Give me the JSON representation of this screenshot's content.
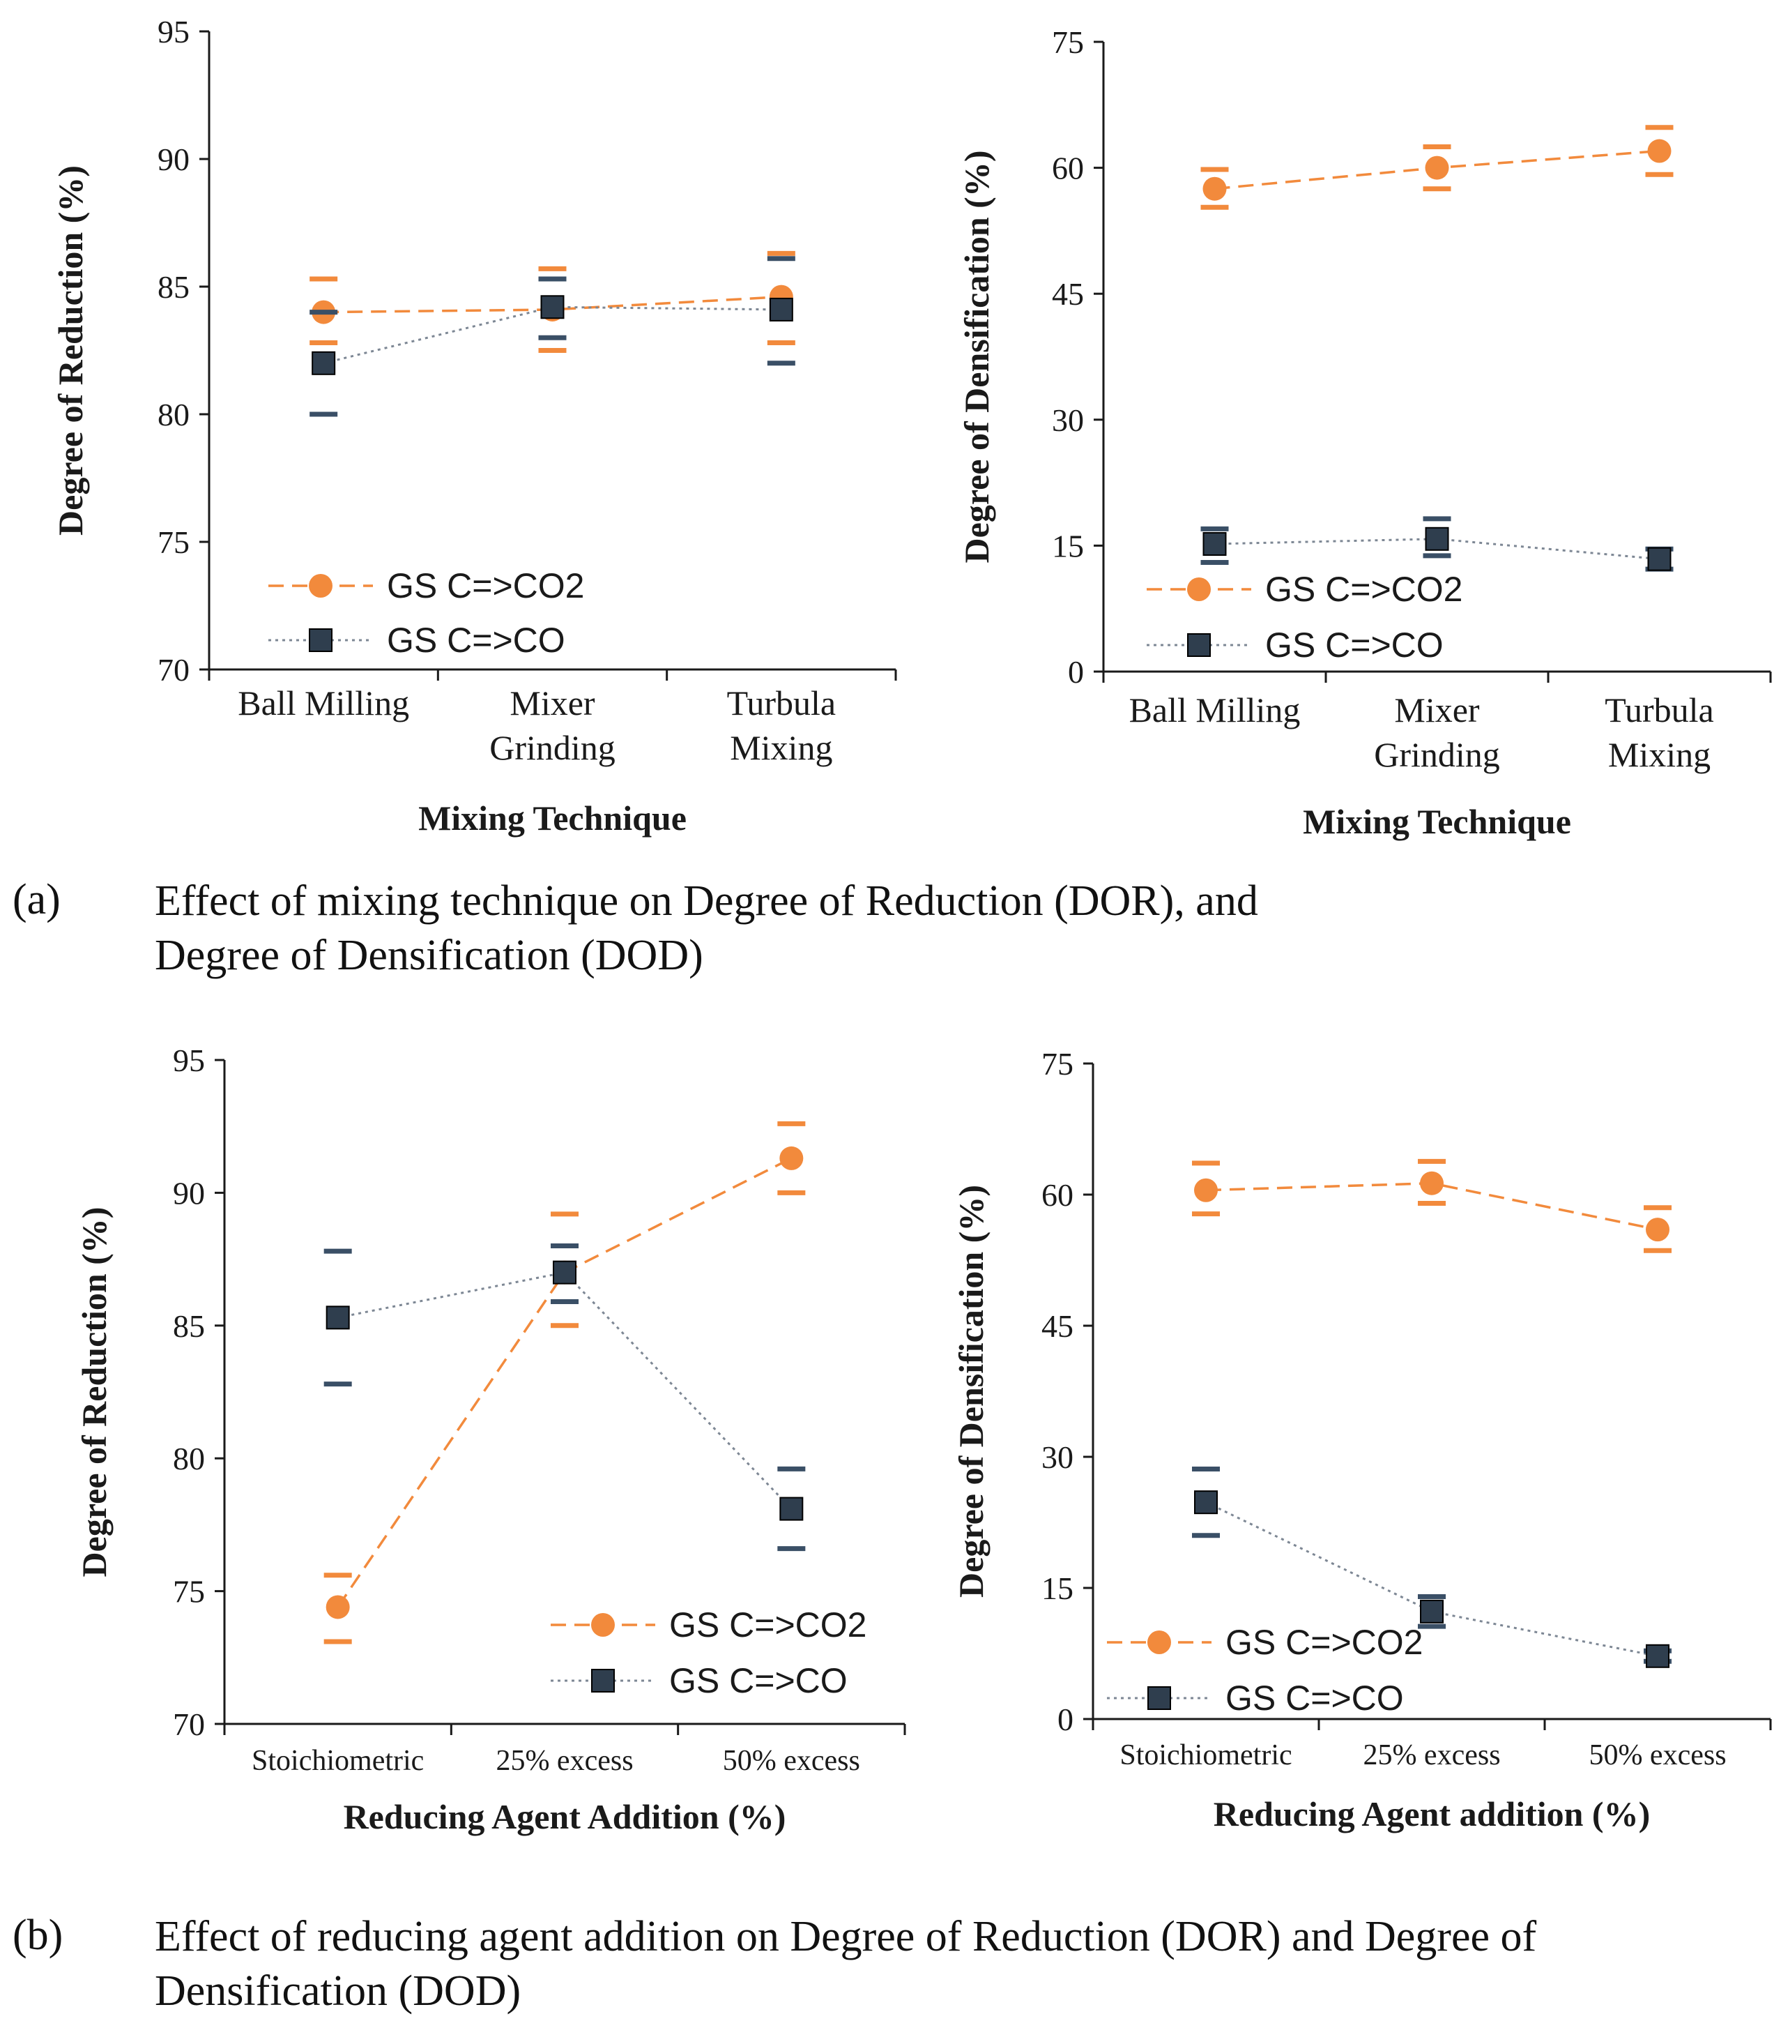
{
  "colors": {
    "co2": "#F28A3C",
    "co": "#2F3E4E",
    "co_err": "#3A4F66",
    "axis": "#1a1a1a"
  },
  "legend": {
    "co2": "GS C=>CO2",
    "co": "GS C=>CO"
  },
  "chart_data": [
    {
      "id": "a-dor",
      "type": "line",
      "title": "",
      "xlabel": "Mixing Technique",
      "ylabel": "Degree of Reduction (%)",
      "categories": [
        [
          "Ball Milling"
        ],
        [
          "Mixer",
          "Grinding"
        ],
        [
          "Turbula",
          "Mixing"
        ]
      ],
      "ylim": [
        70,
        95
      ],
      "yticks": [
        70,
        75,
        80,
        85,
        90,
        95
      ],
      "legend_position": "bottom-left",
      "series": [
        {
          "name": "GS C=>CO2",
          "key": "co2",
          "values": [
            84.0,
            84.1,
            84.6
          ],
          "err_low": [
            82.8,
            82.5,
            82.8
          ],
          "err_high": [
            85.3,
            85.7,
            86.3
          ]
        },
        {
          "name": "GS C=>CO",
          "key": "co",
          "values": [
            82.0,
            84.2,
            84.1
          ],
          "err_low": [
            80.0,
            83.0,
            82.0
          ],
          "err_high": [
            84.0,
            85.3,
            86.1
          ]
        }
      ]
    },
    {
      "id": "a-dod",
      "type": "line",
      "title": "",
      "xlabel": "Mixing Technique",
      "ylabel": "Degree of Densification (%)",
      "categories": [
        [
          "Ball Milling"
        ],
        [
          "Mixer",
          "Grinding"
        ],
        [
          "Turbula",
          "Mixing"
        ]
      ],
      "ylim": [
        0,
        75
      ],
      "yticks": [
        0,
        15,
        30,
        45,
        60,
        75
      ],
      "legend_position": "bottom-left",
      "series": [
        {
          "name": "GS C=>CO2",
          "key": "co2",
          "values": [
            57.5,
            60.0,
            62.0
          ],
          "err_low": [
            55.3,
            57.5,
            59.2
          ],
          "err_high": [
            59.8,
            62.5,
            64.8
          ]
        },
        {
          "name": "GS C=>CO",
          "key": "co",
          "values": [
            15.2,
            15.8,
            13.4
          ],
          "err_low": [
            13.0,
            13.8,
            12.2
          ],
          "err_high": [
            17.0,
            18.2,
            14.6
          ]
        }
      ]
    },
    {
      "id": "b-dor",
      "type": "line",
      "title": "",
      "xlabel": "Reducing Agent Addition (%)",
      "ylabel": "Degree of Reduction (%)",
      "categories": [
        [
          "Stoichiometric"
        ],
        [
          "25% excess"
        ],
        [
          "50% excess"
        ]
      ],
      "ylim": [
        70,
        95
      ],
      "yticks": [
        70,
        75,
        80,
        85,
        90,
        95
      ],
      "legend_position": "bottom-right",
      "series": [
        {
          "name": "GS C=>CO2",
          "key": "co2",
          "values": [
            74.4,
            87.0,
            91.3
          ],
          "err_low": [
            73.1,
            85.0,
            90.0
          ],
          "err_high": [
            75.6,
            89.2,
            92.6
          ]
        },
        {
          "name": "GS C=>CO",
          "key": "co",
          "values": [
            85.3,
            87.0,
            78.1
          ],
          "err_low": [
            82.8,
            85.9,
            76.6
          ],
          "err_high": [
            87.8,
            88.0,
            79.6
          ]
        }
      ]
    },
    {
      "id": "b-dod",
      "type": "line",
      "title": "",
      "xlabel": "Reducing Agent addition (%)",
      "ylabel": "Degree of Densification (%)",
      "categories": [
        [
          "Stoichiometric"
        ],
        [
          "25% excess"
        ],
        [
          "50% excess"
        ]
      ],
      "ylim": [
        0,
        75
      ],
      "yticks": [
        0,
        15,
        30,
        45,
        60,
        75
      ],
      "legend_position": "bottom-left",
      "series": [
        {
          "name": "GS C=>CO2",
          "key": "co2",
          "values": [
            60.5,
            61.3,
            56.0
          ],
          "err_low": [
            57.8,
            59.0,
            53.6
          ],
          "err_high": [
            63.6,
            63.8,
            58.5
          ]
        },
        {
          "name": "GS C=>CO",
          "key": "co",
          "values": [
            24.8,
            12.3,
            7.2
          ],
          "err_low": [
            21.0,
            10.6,
            6.6
          ],
          "err_high": [
            28.6,
            14.0,
            7.8
          ]
        }
      ]
    }
  ],
  "captions": {
    "a": {
      "tag": "(a)",
      "line1": "Effect of mixing technique on Degree of Reduction (DOR), and",
      "line2": "Degree of Densification (DOD)"
    },
    "b": {
      "tag": "(b)",
      "line1": "Effect of reducing agent addition on Degree of Reduction (DOR) and Degree of",
      "line2": "Densification (DOD)"
    }
  }
}
